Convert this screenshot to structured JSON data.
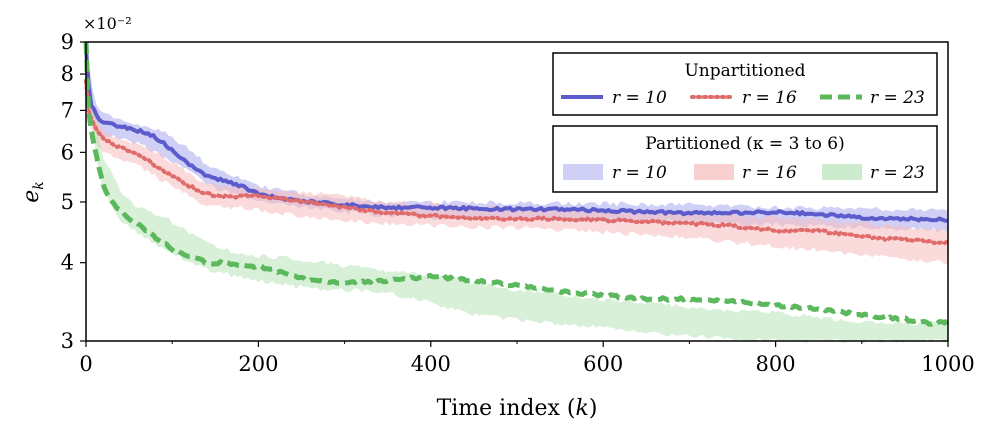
{
  "chart_data": {
    "type": "line",
    "title": "",
    "xlabel": "Time index (k)",
    "ylabel": "e_k",
    "y_scale_label": "×10⁻²",
    "yscale": "log",
    "xlim": [
      0,
      1000
    ],
    "ylim": [
      3,
      9
    ],
    "x_ticks": [
      0,
      200,
      400,
      600,
      800,
      1000
    ],
    "x_tick_labels": [
      "0",
      "200",
      "400",
      "600",
      "800",
      "1000"
    ],
    "y_ticks": [
      3,
      4,
      5,
      6,
      7,
      8,
      9
    ],
    "y_tick_labels": [
      "3",
      "4",
      "5",
      "6",
      "7",
      "8",
      "9"
    ],
    "legend_groups": [
      {
        "title": "Unpartitioned",
        "placement": "top-right",
        "entries": [
          "r = 10",
          "r = 16",
          "r = 23"
        ]
      },
      {
        "title": "Partitioned (κ = 3 to 6)",
        "placement": "upper-right",
        "entries": [
          "r = 10",
          "r = 16",
          "r = 23"
        ]
      }
    ],
    "series": [
      {
        "name": "Unpartitioned r = 10",
        "style": "solid",
        "color": "#5b5bcc",
        "x": [
          0,
          3,
          6,
          10,
          15,
          20,
          30,
          40,
          50,
          60,
          70,
          80,
          100,
          120,
          140,
          160,
          180,
          200,
          230,
          260,
          300,
          350,
          400,
          450,
          500,
          550,
          600,
          650,
          700,
          750,
          800,
          850,
          900,
          950,
          1000
        ],
        "y": [
          8.8,
          7.7,
          7.1,
          7.0,
          6.8,
          6.7,
          6.65,
          6.6,
          6.55,
          6.5,
          6.45,
          6.35,
          6.05,
          5.75,
          5.5,
          5.4,
          5.3,
          5.15,
          5.05,
          5.0,
          4.95,
          4.9,
          4.9,
          4.88,
          4.87,
          4.87,
          4.85,
          4.82,
          4.8,
          4.8,
          4.82,
          4.78,
          4.72,
          4.7,
          4.68
        ]
      },
      {
        "name": "Unpartitioned r = 16",
        "style": "dotted",
        "color": "#e06b6b",
        "x": [
          0,
          3,
          6,
          10,
          20,
          30,
          40,
          50,
          60,
          70,
          80,
          100,
          120,
          140,
          160,
          180,
          200,
          230,
          260,
          300,
          350,
          400,
          450,
          500,
          550,
          600,
          650,
          700,
          750,
          800,
          850,
          900,
          950,
          1000
        ],
        "y": [
          7.8,
          7.0,
          6.8,
          6.6,
          6.3,
          6.2,
          6.1,
          6.05,
          5.95,
          5.85,
          5.7,
          5.5,
          5.3,
          5.15,
          5.1,
          5.1,
          5.12,
          5.05,
          5.0,
          4.9,
          4.8,
          4.75,
          4.72,
          4.7,
          4.7,
          4.68,
          4.65,
          4.62,
          4.58,
          4.5,
          4.5,
          4.4,
          4.35,
          4.3
        ]
      },
      {
        "name": "Unpartitioned r = 23",
        "style": "dashed",
        "color": "#5cb85c",
        "x": [
          0,
          3,
          6,
          10,
          15,
          20,
          30,
          40,
          50,
          60,
          70,
          80,
          100,
          120,
          140,
          160,
          180,
          200,
          230,
          260,
          300,
          350,
          400,
          450,
          500,
          550,
          600,
          650,
          700,
          750,
          800,
          850,
          900,
          950,
          980,
          1000
        ],
        "y": [
          9.0,
          7.0,
          6.5,
          6.1,
          5.7,
          5.3,
          5.0,
          4.85,
          4.72,
          4.6,
          4.5,
          4.4,
          4.2,
          4.1,
          4.0,
          4.0,
          3.95,
          3.95,
          3.85,
          3.75,
          3.72,
          3.75,
          3.8,
          3.75,
          3.68,
          3.6,
          3.55,
          3.5,
          3.5,
          3.48,
          3.42,
          3.38,
          3.3,
          3.25,
          3.2,
          3.22
        ]
      }
    ],
    "bands": [
      {
        "name": "Partitioned r = 10",
        "color": "#aaaaee",
        "x": [
          0,
          10,
          20,
          40,
          60,
          80,
          100,
          120,
          140,
          160,
          180,
          200,
          250,
          300,
          350,
          400,
          500,
          600,
          700,
          800,
          900,
          1000
        ],
        "lower": [
          7.3,
          6.6,
          6.4,
          6.3,
          6.2,
          6.0,
          5.8,
          5.6,
          5.35,
          5.2,
          5.1,
          5.0,
          4.9,
          4.82,
          4.75,
          4.72,
          4.7,
          4.68,
          4.65,
          4.6,
          4.55,
          4.5
        ],
        "upper": [
          8.8,
          7.2,
          6.9,
          6.75,
          6.65,
          6.55,
          6.35,
          6.05,
          5.75,
          5.6,
          5.45,
          5.3,
          5.15,
          5.05,
          5.0,
          5.0,
          4.98,
          4.97,
          4.95,
          4.9,
          4.88,
          4.85
        ]
      },
      {
        "name": "Partitioned r = 16",
        "color": "#f5bcbc",
        "x": [
          0,
          10,
          20,
          40,
          60,
          80,
          100,
          120,
          140,
          160,
          180,
          200,
          250,
          300,
          350,
          400,
          500,
          600,
          700,
          800,
          900,
          1000
        ],
        "lower": [
          7.0,
          6.3,
          6.0,
          5.85,
          5.7,
          5.5,
          5.3,
          5.1,
          4.95,
          4.9,
          4.9,
          4.85,
          4.75,
          4.68,
          4.62,
          4.58,
          4.55,
          4.48,
          4.38,
          4.25,
          4.12,
          4.0
        ],
        "upper": [
          7.6,
          6.8,
          6.5,
          6.3,
          6.15,
          6.0,
          5.8,
          5.55,
          5.35,
          5.3,
          5.28,
          5.25,
          5.18,
          5.1,
          5.0,
          4.95,
          4.88,
          4.85,
          4.8,
          4.72,
          4.62,
          4.5
        ]
      },
      {
        "name": "Partitioned r = 23",
        "color": "#b6e3b6",
        "x": [
          0,
          10,
          20,
          40,
          60,
          80,
          100,
          120,
          140,
          160,
          180,
          200,
          250,
          300,
          350,
          400,
          450,
          500,
          600,
          700,
          800,
          900,
          1000
        ],
        "lower": [
          8.8,
          6.1,
          5.2,
          4.7,
          4.45,
          4.3,
          4.15,
          4.0,
          3.9,
          3.85,
          3.78,
          3.75,
          3.65,
          3.62,
          3.58,
          3.45,
          3.3,
          3.25,
          3.15,
          3.05,
          3.0,
          3.0,
          3.0
        ],
        "upper": [
          9.0,
          6.8,
          5.9,
          5.2,
          4.9,
          4.8,
          4.65,
          4.45,
          4.3,
          4.2,
          4.12,
          4.1,
          4.05,
          3.95,
          3.88,
          3.82,
          3.72,
          3.62,
          3.5,
          3.4,
          3.32,
          3.22,
          3.2
        ]
      }
    ]
  }
}
